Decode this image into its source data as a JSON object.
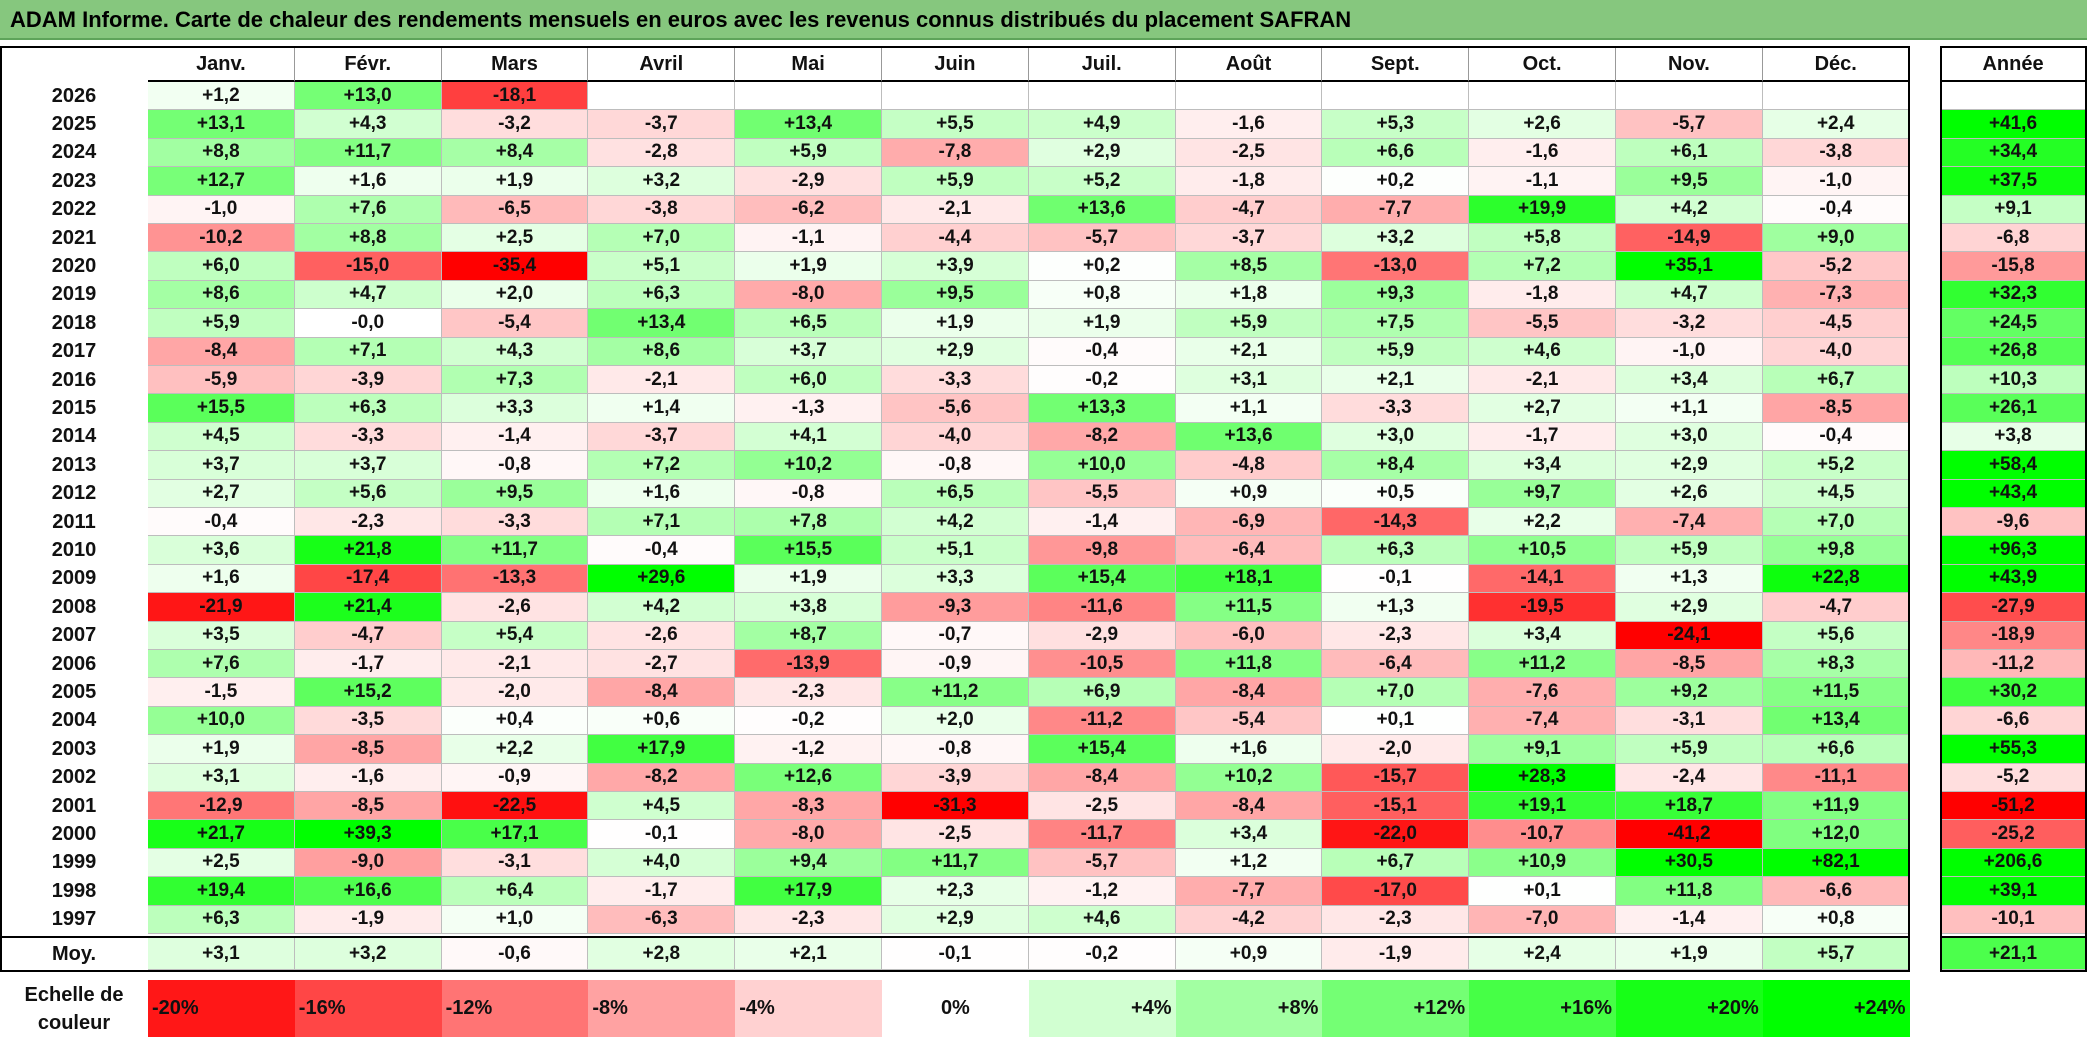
{
  "title": "ADAM Informe. Carte de chaleur des rendements mensuels en euros avec les revenus connus distribués du placement SAFRAN",
  "scale_label": [
    "Echelle de",
    "couleur"
  ],
  "colors": {
    "title_bar": "#86c77e",
    "negative_max": "#ff0000",
    "positive_max": "#00ff00",
    "neutral": "#ffffff"
  },
  "chart_data": {
    "type": "heatmap",
    "title": "ADAM Informe. Carte de chaleur des rendements mensuels en euros avec les revenus connus distribués du placement SAFRAN",
    "columns": [
      "Janv.",
      "Févr.",
      "Mars",
      "Avril",
      "Mai",
      "Juin",
      "Juil.",
      "Août",
      "Sept.",
      "Oct.",
      "Nov.",
      "Déc."
    ],
    "year_column": "Année",
    "rows": [
      {
        "year": "2026",
        "months": [
          "+1,2",
          "+13,0",
          "-18,1",
          "",
          "",
          "",
          "",
          "",
          "",
          "",
          "",
          ""
        ],
        "annual": ""
      },
      {
        "year": "2025",
        "months": [
          "+13,1",
          "+4,3",
          "-3,2",
          "-3,7",
          "+13,4",
          "+5,5",
          "+4,9",
          "-1,6",
          "+5,3",
          "+2,6",
          "-5,7",
          "+2,4"
        ],
        "annual": "+41,6"
      },
      {
        "year": "2024",
        "months": [
          "+8,8",
          "+11,7",
          "+8,4",
          "-2,8",
          "+5,9",
          "-7,8",
          "+2,9",
          "-2,5",
          "+6,6",
          "-1,6",
          "+6,1",
          "-3,8"
        ],
        "annual": "+34,4"
      },
      {
        "year": "2023",
        "months": [
          "+12,7",
          "+1,6",
          "+1,9",
          "+3,2",
          "-2,9",
          "+5,9",
          "+5,2",
          "-1,8",
          "+0,2",
          "-1,1",
          "+9,5",
          "-1,0"
        ],
        "annual": "+37,5"
      },
      {
        "year": "2022",
        "months": [
          "-1,0",
          "+7,6",
          "-6,5",
          "-3,8",
          "-6,2",
          "-2,1",
          "+13,6",
          "-4,7",
          "-7,7",
          "+19,9",
          "+4,2",
          "-0,4"
        ],
        "annual": "+9,1"
      },
      {
        "year": "2021",
        "months": [
          "-10,2",
          "+8,8",
          "+2,5",
          "+7,0",
          "-1,1",
          "-4,4",
          "-5,7",
          "-3,7",
          "+3,2",
          "+5,8",
          "-14,9",
          "+9,0"
        ],
        "annual": "-6,8"
      },
      {
        "year": "2020",
        "months": [
          "+6,0",
          "-15,0",
          "-35,4",
          "+5,1",
          "+1,9",
          "+3,9",
          "+0,2",
          "+8,5",
          "-13,0",
          "+7,2",
          "+35,1",
          "-5,2"
        ],
        "annual": "-15,8"
      },
      {
        "year": "2019",
        "months": [
          "+8,6",
          "+4,7",
          "+2,0",
          "+6,3",
          "-8,0",
          "+9,5",
          "+0,8",
          "+1,8",
          "+9,3",
          "-1,8",
          "+4,7",
          "-7,3"
        ],
        "annual": "+32,3"
      },
      {
        "year": "2018",
        "months": [
          "+5,9",
          "-0,0",
          "-5,4",
          "+13,4",
          "+6,5",
          "+1,9",
          "+1,9",
          "+5,9",
          "+7,5",
          "-5,5",
          "-3,2",
          "-4,5"
        ],
        "annual": "+24,5"
      },
      {
        "year": "2017",
        "months": [
          "-8,4",
          "+7,1",
          "+4,3",
          "+8,6",
          "+3,7",
          "+2,9",
          "-0,4",
          "+2,1",
          "+5,9",
          "+4,6",
          "-1,0",
          "-4,0"
        ],
        "annual": "+26,8"
      },
      {
        "year": "2016",
        "months": [
          "-5,9",
          "-3,9",
          "+7,3",
          "-2,1",
          "+6,0",
          "-3,3",
          "-0,2",
          "+3,1",
          "+2,1",
          "-2,1",
          "+3,4",
          "+6,7"
        ],
        "annual": "+10,3"
      },
      {
        "year": "2015",
        "months": [
          "+15,5",
          "+6,3",
          "+3,3",
          "+1,4",
          "-1,3",
          "-5,6",
          "+13,3",
          "+1,1",
          "-3,3",
          "+2,7",
          "+1,1",
          "-8,5"
        ],
        "annual": "+26,1"
      },
      {
        "year": "2014",
        "months": [
          "+4,5",
          "-3,3",
          "-1,4",
          "-3,7",
          "+4,1",
          "-4,0",
          "-8,2",
          "+13,6",
          "+3,0",
          "-1,7",
          "+3,0",
          "-0,4"
        ],
        "annual": "+3,8"
      },
      {
        "year": "2013",
        "months": [
          "+3,7",
          "+3,7",
          "-0,8",
          "+7,2",
          "+10,2",
          "-0,8",
          "+10,0",
          "-4,8",
          "+8,4",
          "+3,4",
          "+2,9",
          "+5,2"
        ],
        "annual": "+58,4"
      },
      {
        "year": "2012",
        "months": [
          "+2,7",
          "+5,6",
          "+9,5",
          "+1,6",
          "-0,8",
          "+6,5",
          "-5,5",
          "+0,9",
          "+0,5",
          "+9,7",
          "+2,6",
          "+4,5"
        ],
        "annual": "+43,4"
      },
      {
        "year": "2011",
        "months": [
          "-0,4",
          "-2,3",
          "-3,3",
          "+7,1",
          "+7,8",
          "+4,2",
          "-1,4",
          "-6,9",
          "-14,3",
          "+2,2",
          "-7,4",
          "+7,0"
        ],
        "annual": "-9,6"
      },
      {
        "year": "2010",
        "months": [
          "+3,6",
          "+21,8",
          "+11,7",
          "-0,4",
          "+15,5",
          "+5,1",
          "-9,8",
          "-6,4",
          "+6,3",
          "+10,5",
          "+5,9",
          "+9,8"
        ],
        "annual": "+96,3"
      },
      {
        "year": "2009",
        "months": [
          "+1,6",
          "-17,4",
          "-13,3",
          "+29,6",
          "+1,9",
          "+3,3",
          "+15,4",
          "+18,1",
          "-0,1",
          "-14,1",
          "+1,3",
          "+22,8"
        ],
        "annual": "+43,9"
      },
      {
        "year": "2008",
        "months": [
          "-21,9",
          "+21,4",
          "-2,6",
          "+4,2",
          "+3,8",
          "-9,3",
          "-11,6",
          "+11,5",
          "+1,3",
          "-19,5",
          "+2,9",
          "-4,7"
        ],
        "annual": "-27,9"
      },
      {
        "year": "2007",
        "months": [
          "+3,5",
          "-4,7",
          "+5,4",
          "-2,6",
          "+8,7",
          "-0,7",
          "-2,9",
          "-6,0",
          "-2,3",
          "+3,4",
          "-24,1",
          "+5,6"
        ],
        "annual": "-18,9"
      },
      {
        "year": "2006",
        "months": [
          "+7,6",
          "-1,7",
          "-2,1",
          "-2,7",
          "-13,9",
          "-0,9",
          "-10,5",
          "+11,8",
          "-6,4",
          "+11,2",
          "-8,5",
          "+8,3"
        ],
        "annual": "-11,2"
      },
      {
        "year": "2005",
        "months": [
          "-1,5",
          "+15,2",
          "-2,0",
          "-8,4",
          "-2,3",
          "+11,2",
          "+6,9",
          "-8,4",
          "+7,0",
          "-7,6",
          "+9,2",
          "+11,5"
        ],
        "annual": "+30,2"
      },
      {
        "year": "2004",
        "months": [
          "+10,0",
          "-3,5",
          "+0,4",
          "+0,6",
          "-0,2",
          "+2,0",
          "-11,2",
          "-5,4",
          "+0,1",
          "-7,4",
          "-3,1",
          "+13,4"
        ],
        "annual": "-6,6"
      },
      {
        "year": "2003",
        "months": [
          "+1,9",
          "-8,5",
          "+2,2",
          "+17,9",
          "-1,2",
          "-0,8",
          "+15,4",
          "+1,6",
          "-2,0",
          "+9,1",
          "+5,9",
          "+6,6"
        ],
        "annual": "+55,3"
      },
      {
        "year": "2002",
        "months": [
          "+3,1",
          "-1,6",
          "-0,9",
          "-8,2",
          "+12,6",
          "-3,9",
          "-8,4",
          "+10,2",
          "-15,7",
          "+28,3",
          "-2,4",
          "-11,1"
        ],
        "annual": "-5,2"
      },
      {
        "year": "2001",
        "months": [
          "-12,9",
          "-8,5",
          "-22,5",
          "+4,5",
          "-8,3",
          "-31,3",
          "-2,5",
          "-8,4",
          "-15,1",
          "+19,1",
          "+18,7",
          "+11,9"
        ],
        "annual": "-51,2"
      },
      {
        "year": "2000",
        "months": [
          "+21,7",
          "+39,3",
          "+17,1",
          "-0,1",
          "-8,0",
          "-2,5",
          "-11,7",
          "+3,4",
          "-22,0",
          "-10,7",
          "-41,2",
          "+12,0"
        ],
        "annual": "-25,2"
      },
      {
        "year": "1999",
        "months": [
          "+2,5",
          "-9,0",
          "-3,1",
          "+4,0",
          "+9,4",
          "+11,7",
          "-5,7",
          "+1,2",
          "+6,7",
          "+10,9",
          "+30,5",
          "+82,1"
        ],
        "annual": "+206,6"
      },
      {
        "year": "1998",
        "months": [
          "+19,4",
          "+16,6",
          "+6,4",
          "-1,7",
          "+17,9",
          "+2,3",
          "-1,2",
          "-7,7",
          "-17,0",
          "+0,1",
          "+11,8",
          "-6,6"
        ],
        "annual": "+39,1"
      },
      {
        "year": "1997",
        "months": [
          "+6,3",
          "-1,9",
          "+1,0",
          "-6,3",
          "-2,3",
          "+2,9",
          "+4,6",
          "-4,2",
          "-2,3",
          "-7,0",
          "-1,4",
          "+0,8"
        ],
        "annual": "-10,1"
      }
    ],
    "average": {
      "label": "Moy.",
      "months": [
        "+3,1",
        "+3,2",
        "-0,6",
        "+2,8",
        "+2,1",
        "-0,1",
        "-0,2",
        "+0,9",
        "-1,9",
        "+2,4",
        "+1,9",
        "+5,7"
      ],
      "annual": "+21,1"
    },
    "color_scale": [
      "-20%",
      "-16%",
      "-12%",
      "-8%",
      "-4%",
      "0%",
      "+4%",
      "+8%",
      "+12%",
      "+16%",
      "+20%",
      "+24%"
    ]
  }
}
